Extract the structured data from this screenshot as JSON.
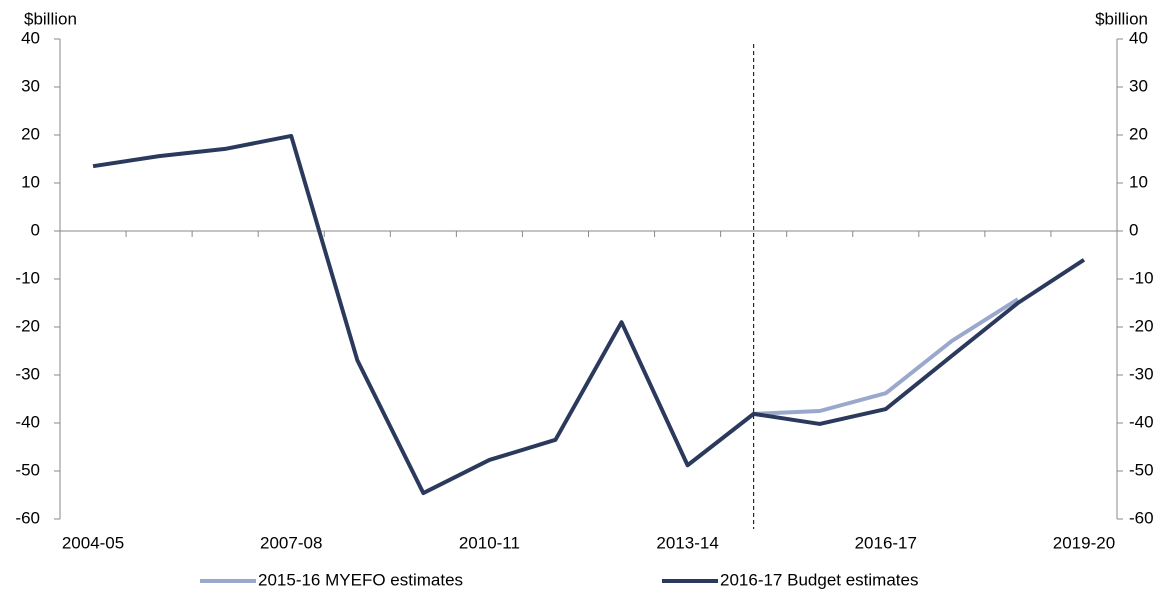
{
  "chart_data": {
    "type": "line",
    "y_axis_label": "$billion",
    "y2_axis_label": "$billion",
    "categories": [
      "2004-05",
      null,
      null,
      "2007-08",
      null,
      null,
      "2010-11",
      null,
      null,
      "2013-14",
      null,
      null,
      "2016-17",
      null,
      null,
      "2019-20"
    ],
    "series": [
      {
        "name": "2015-16 MYEFO estimates",
        "color": "#9aa8cc",
        "values": [
          null,
          null,
          null,
          null,
          null,
          null,
          null,
          null,
          null,
          null,
          -38.1,
          -37.5,
          -33.8,
          -22.9,
          -14.2,
          null
        ]
      },
      {
        "name": "2016-17 Budget estimates",
        "color": "#2b3a5c",
        "values": [
          13.5,
          15.6,
          17.1,
          19.8,
          -26.9,
          -54.6,
          -47.7,
          -43.5,
          -19.0,
          -48.8,
          -38.1,
          -40.2,
          -37.1,
          -26.0,
          -15.0,
          -6.0
        ]
      }
    ],
    "ylim": [
      -60,
      40
    ],
    "yticks": [
      -60,
      -50,
      -40,
      -30,
      -20,
      -10,
      0,
      10,
      20,
      30,
      40
    ],
    "y2lim": [
      -60,
      40
    ],
    "y2ticks": [
      -60,
      -50,
      -40,
      -30,
      -20,
      -10,
      0,
      10,
      20,
      30,
      40
    ],
    "legend": "bottom"
  }
}
